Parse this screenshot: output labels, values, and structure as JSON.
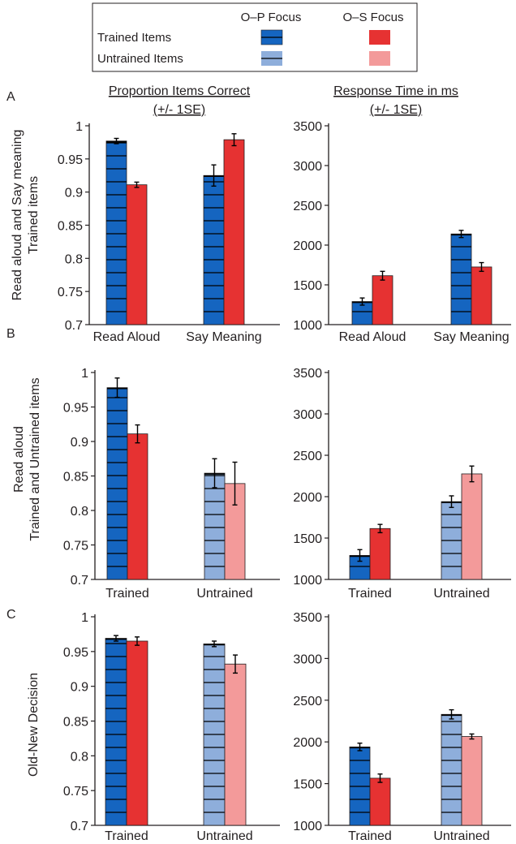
{
  "legend": {
    "col1": "O–P Focus",
    "col2": "O–S Focus",
    "row1": "Trained Items",
    "row2": "Untrained Items",
    "op_trained_color": "#1565c0",
    "op_untrained_color": "#8eaedb",
    "os_trained_color": "#e63232",
    "os_untrained_color": "#f39a9a"
  },
  "headers": {
    "left_line1": "Proportion Items Correct",
    "left_line2": "(+/- 1SE)",
    "right_line1": "Response Time in ms",
    "right_line2": "(+/- 1SE)"
  },
  "rows": [
    {
      "letter": "A",
      "ylabel_lines": [
        "Read aloud and Say meaning",
        "Trained items"
      ]
    },
    {
      "letter": "B",
      "ylabel_lines": [
        "Read aloud",
        "Trained and Untrained items"
      ]
    },
    {
      "letter": "C",
      "ylabel_lines": [
        "Old-New Decision"
      ]
    }
  ],
  "chart_data": [
    {
      "id": "A-accuracy",
      "type": "bar",
      "ylim": [
        0.7,
        1.0
      ],
      "yticks": [
        0.7,
        0.75,
        0.8,
        0.85,
        0.9,
        0.95,
        1
      ],
      "ytick_labels": [
        "0.7",
        "0.75",
        "0.8",
        "0.85",
        "0.9",
        "0.95",
        "1"
      ],
      "categories": [
        "Read Aloud",
        "Say Meaning"
      ],
      "series": [
        {
          "name": "O–P Focus",
          "values": [
            0.977,
            0.925
          ],
          "se": [
            0.004,
            0.016
          ],
          "hatched": true,
          "colors": [
            "#1565c0",
            "#1565c0"
          ]
        },
        {
          "name": "O–S Focus",
          "values": [
            0.911,
            0.979
          ],
          "se": [
            0.004,
            0.009
          ],
          "hatched": false,
          "colors": [
            "#e63232",
            "#e63232"
          ]
        }
      ]
    },
    {
      "id": "A-rt",
      "type": "bar",
      "ylim": [
        1000,
        3500
      ],
      "yticks": [
        1000,
        1500,
        2000,
        2500,
        3000,
        3500
      ],
      "ytick_labels": [
        "1000",
        "1500",
        "2000",
        "2500",
        "3000",
        "3500"
      ],
      "categories": [
        "Read Aloud",
        "Say Meaning"
      ],
      "series": [
        {
          "name": "O–P Focus",
          "values": [
            1290,
            2140
          ],
          "se": [
            45,
            45
          ],
          "hatched": true,
          "colors": [
            "#1565c0",
            "#1565c0"
          ]
        },
        {
          "name": "O–S Focus",
          "values": [
            1615,
            1725
          ],
          "se": [
            55,
            55
          ],
          "hatched": false,
          "colors": [
            "#e63232",
            "#e63232"
          ]
        }
      ]
    },
    {
      "id": "B-accuracy",
      "type": "bar",
      "ylim": [
        0.7,
        1.0
      ],
      "yticks": [
        0.7,
        0.75,
        0.8,
        0.85,
        0.9,
        0.95,
        1
      ],
      "ytick_labels": [
        "0.7",
        "0.75",
        "0.8",
        "0.85",
        "0.9",
        "0.95",
        "1"
      ],
      "categories": [
        "Trained",
        "Untrained"
      ],
      "series": [
        {
          "name": "O–P Focus",
          "values": [
            0.978,
            0.854
          ],
          "se": [
            0.014,
            0.021
          ],
          "hatched": true,
          "colors": [
            "#1565c0",
            "#8eaedb"
          ]
        },
        {
          "name": "O–S Focus",
          "values": [
            0.911,
            0.839
          ],
          "se": [
            0.013,
            0.031
          ],
          "hatched": false,
          "colors": [
            "#e63232",
            "#f39a9a"
          ]
        }
      ]
    },
    {
      "id": "B-rt",
      "type": "bar",
      "ylim": [
        1000,
        3500
      ],
      "yticks": [
        1000,
        1500,
        2000,
        2500,
        3000,
        3500
      ],
      "ytick_labels": [
        "1000",
        "1500",
        "2000",
        "2500",
        "3000",
        "3500"
      ],
      "categories": [
        "Trained",
        "Untrained"
      ],
      "series": [
        {
          "name": "O–P Focus",
          "values": [
            1290,
            1940
          ],
          "se": [
            70,
            70
          ],
          "hatched": true,
          "colors": [
            "#1565c0",
            "#8eaedb"
          ]
        },
        {
          "name": "O–S Focus",
          "values": [
            1615,
            2275
          ],
          "se": [
            50,
            95
          ],
          "hatched": false,
          "colors": [
            "#e63232",
            "#f39a9a"
          ]
        }
      ]
    },
    {
      "id": "C-accuracy",
      "type": "bar",
      "ylim": [
        0.7,
        1.0
      ],
      "yticks": [
        0.7,
        0.75,
        0.8,
        0.85,
        0.9,
        0.95,
        1
      ],
      "ytick_labels": [
        "0.7",
        "0.75",
        "0.8",
        "0.85",
        "0.9",
        "0.95",
        "1"
      ],
      "categories": [
        "Trained",
        "Untrained"
      ],
      "series": [
        {
          "name": "O–P Focus",
          "values": [
            0.969,
            0.961
          ],
          "se": [
            0.004,
            0.004
          ],
          "hatched": true,
          "colors": [
            "#1565c0",
            "#8eaedb"
          ]
        },
        {
          "name": "O–S Focus",
          "values": [
            0.965,
            0.932
          ],
          "se": [
            0.006,
            0.013
          ],
          "hatched": false,
          "colors": [
            "#e63232",
            "#f39a9a"
          ]
        }
      ]
    },
    {
      "id": "C-rt",
      "type": "bar",
      "ylim": [
        1000,
        3500
      ],
      "yticks": [
        1000,
        1500,
        2000,
        2500,
        3000,
        3500
      ],
      "ytick_labels": [
        "1000",
        "1500",
        "2000",
        "2500",
        "3000",
        "3500"
      ],
      "categories": [
        "Trained",
        "Untrained"
      ],
      "series": [
        {
          "name": "O–P Focus",
          "values": [
            1940,
            2330
          ],
          "se": [
            45,
            55
          ],
          "hatched": true,
          "colors": [
            "#1565c0",
            "#8eaedb"
          ]
        },
        {
          "name": "O–S Focus",
          "values": [
            1565,
            2065
          ],
          "se": [
            50,
            30
          ],
          "hatched": false,
          "colors": [
            "#e63232",
            "#f39a9a"
          ]
        }
      ]
    }
  ]
}
